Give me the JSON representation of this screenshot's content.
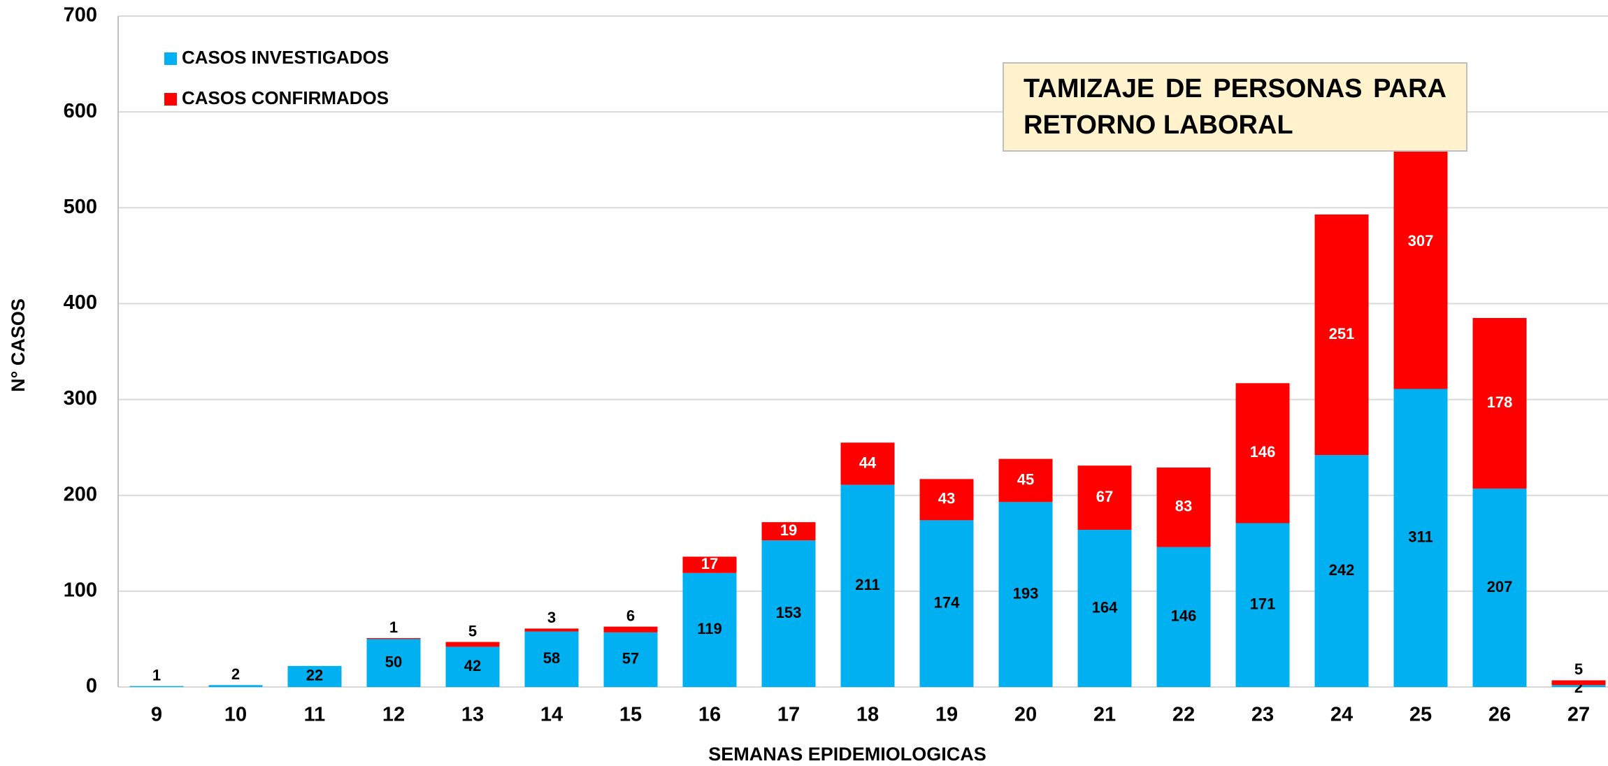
{
  "chart_data": {
    "type": "stacked_bar",
    "annotation": "TAMIZAJE DE PERSONAS PARA RETORNO LABORAL",
    "x_label": "SEMANAS EPIDEMIOLOGICAS",
    "y_label": "N° CASOS",
    "categories": [
      "9",
      "10",
      "11",
      "12",
      "13",
      "14",
      "15",
      "16",
      "17",
      "18",
      "19",
      "20",
      "21",
      "22",
      "23",
      "24",
      "25",
      "26",
      "27"
    ],
    "series": [
      {
        "name": "CASOS INVESTIGADOS",
        "color": "#00b0f0",
        "values": [
          1,
          2,
          22,
          50,
          42,
          58,
          57,
          119,
          153,
          211,
          174,
          193,
          164,
          146,
          171,
          242,
          311,
          207,
          2
        ]
      },
      {
        "name": "CASOS CONFIRMADOS",
        "color": "#ff0000",
        "values": [
          null,
          null,
          null,
          1,
          5,
          3,
          6,
          17,
          19,
          44,
          43,
          45,
          67,
          83,
          146,
          251,
          307,
          178,
          5
        ]
      }
    ],
    "ylim": [
      0,
      700
    ],
    "yticks": [
      0,
      100,
      200,
      300,
      400,
      500,
      600,
      700
    ],
    "grid": true,
    "legend": "top-left"
  }
}
